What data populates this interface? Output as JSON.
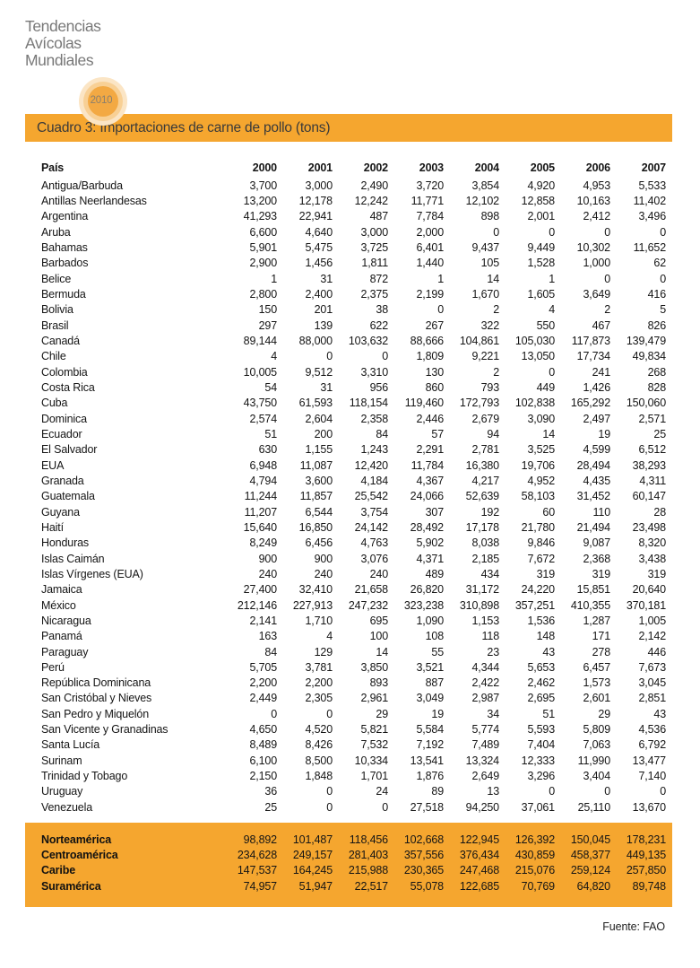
{
  "logo": {
    "lines": [
      "Tendencias",
      "Avícolas",
      "Mundiales"
    ],
    "year": "2010"
  },
  "banner": {
    "title": "Cuadro 3: Importaciones de carne de pollo (tons)"
  },
  "table": {
    "country_header": "País",
    "year_headers": [
      "2000",
      "2001",
      "2002",
      "2003",
      "2004",
      "2005",
      "2006",
      "2007"
    ],
    "rows": [
      {
        "country": "Antigua/Barbuda",
        "values": [
          "3,700",
          "3,000",
          "2,490",
          "3,720",
          "3,854",
          "4,920",
          "4,953",
          "5,533"
        ]
      },
      {
        "country": "Antillas Neerlandesas",
        "values": [
          "13,200",
          "12,178",
          "12,242",
          "11,771",
          "12,102",
          "12,858",
          "10,163",
          "11,402"
        ]
      },
      {
        "country": "Argentina",
        "values": [
          "41,293",
          "22,941",
          "487",
          "7,784",
          "898",
          "2,001",
          "2,412",
          "3,496"
        ]
      },
      {
        "country": "Aruba",
        "values": [
          "6,600",
          "4,640",
          "3,000",
          "2,000",
          "0",
          "0",
          "0",
          "0"
        ]
      },
      {
        "country": "Bahamas",
        "values": [
          "5,901",
          "5,475",
          "3,725",
          "6,401",
          "9,437",
          "9,449",
          "10,302",
          "11,652"
        ]
      },
      {
        "country": "Barbados",
        "values": [
          "2,900",
          "1,456",
          "1,811",
          "1,440",
          "105",
          "1,528",
          "1,000",
          "62"
        ]
      },
      {
        "country": "Belice",
        "values": [
          "1",
          "31",
          "872",
          "1",
          "14",
          "1",
          "0",
          "0"
        ]
      },
      {
        "country": "Bermuda",
        "values": [
          "2,800",
          "2,400",
          "2,375",
          "2,199",
          "1,670",
          "1,605",
          "3,649",
          "416"
        ]
      },
      {
        "country": "Bolivia",
        "values": [
          "150",
          "201",
          "38",
          "0",
          "2",
          "4",
          "2",
          "5"
        ]
      },
      {
        "country": "Brasil",
        "values": [
          "297",
          "139",
          "622",
          "267",
          "322",
          "550",
          "467",
          "826"
        ]
      },
      {
        "country": "Canadá",
        "values": [
          "89,144",
          "88,000",
          "103,632",
          "88,666",
          "104,861",
          "105,030",
          "117,873",
          "139,479"
        ]
      },
      {
        "country": "Chile",
        "values": [
          "4",
          "0",
          "0",
          "1,809",
          "9,221",
          "13,050",
          "17,734",
          "49,834"
        ]
      },
      {
        "country": "Colombia",
        "values": [
          "10,005",
          "9,512",
          "3,310",
          "130",
          "2",
          "0",
          "241",
          "268"
        ]
      },
      {
        "country": "Costa Rica",
        "values": [
          "54",
          "31",
          "956",
          "860",
          "793",
          "449",
          "1,426",
          "828"
        ]
      },
      {
        "country": "Cuba",
        "values": [
          "43,750",
          "61,593",
          "118,154",
          "119,460",
          "172,793",
          "102,838",
          "165,292",
          "150,060"
        ]
      },
      {
        "country": "Dominica",
        "values": [
          "2,574",
          "2,604",
          "2,358",
          "2,446",
          "2,679",
          "3,090",
          "2,497",
          "2,571"
        ]
      },
      {
        "country": "Ecuador",
        "values": [
          "51",
          "200",
          "84",
          "57",
          "94",
          "14",
          "19",
          "25"
        ]
      },
      {
        "country": "El Salvador",
        "values": [
          "630",
          "1,155",
          "1,243",
          "2,291",
          "2,781",
          "3,525",
          "4,599",
          "6,512"
        ]
      },
      {
        "country": "EUA",
        "values": [
          "6,948",
          "11,087",
          "12,420",
          "11,784",
          "16,380",
          "19,706",
          "28,494",
          "38,293"
        ]
      },
      {
        "country": "Granada",
        "values": [
          "4,794",
          "3,600",
          "4,184",
          "4,367",
          "4,217",
          "4,952",
          "4,435",
          "4,311"
        ]
      },
      {
        "country": "Guatemala",
        "values": [
          "11,244",
          "11,857",
          "25,542",
          "24,066",
          "52,639",
          "58,103",
          "31,452",
          "60,147"
        ]
      },
      {
        "country": "Guyana",
        "values": [
          "11,207",
          "6,544",
          "3,754",
          "307",
          "192",
          "60",
          "110",
          "28"
        ]
      },
      {
        "country": "Haití",
        "values": [
          "15,640",
          "16,850",
          "24,142",
          "28,492",
          "17,178",
          "21,780",
          "21,494",
          "23,498"
        ]
      },
      {
        "country": "Honduras",
        "values": [
          "8,249",
          "6,456",
          "4,763",
          "5,902",
          "8,038",
          "9,846",
          "9,087",
          "8,320"
        ]
      },
      {
        "country": "Islas Caimán",
        "values": [
          "900",
          "900",
          "3,076",
          "4,371",
          "2,185",
          "7,672",
          "2,368",
          "3,438"
        ]
      },
      {
        "country": "Islas Vírgenes (EUA)",
        "values": [
          "240",
          "240",
          "240",
          "489",
          "434",
          "319",
          "319",
          "319"
        ]
      },
      {
        "country": "Jamaica",
        "values": [
          "27,400",
          "32,410",
          "21,658",
          "26,820",
          "31,172",
          "24,220",
          "15,851",
          "20,640"
        ]
      },
      {
        "country": "México",
        "values": [
          "212,146",
          "227,913",
          "247,232",
          "323,238",
          "310,898",
          "357,251",
          "410,355",
          "370,181"
        ]
      },
      {
        "country": "Nicaragua",
        "values": [
          "2,141",
          "1,710",
          "695",
          "1,090",
          "1,153",
          "1,536",
          "1,287",
          "1,005"
        ]
      },
      {
        "country": "Panamá",
        "values": [
          "163",
          "4",
          "100",
          "108",
          "118",
          "148",
          "171",
          "2,142"
        ]
      },
      {
        "country": "Paraguay",
        "values": [
          "84",
          "129",
          "14",
          "55",
          "23",
          "43",
          "278",
          "446"
        ]
      },
      {
        "country": "Perú",
        "values": [
          "5,705",
          "3,781",
          "3,850",
          "3,521",
          "4,344",
          "5,653",
          "6,457",
          "7,673"
        ]
      },
      {
        "country": "República Dominicana",
        "values": [
          "2,200",
          "2,200",
          "893",
          "887",
          "2,422",
          "2,462",
          "1,573",
          "3,045"
        ]
      },
      {
        "country": "San Cristóbal y Nieves",
        "values": [
          "2,449",
          "2,305",
          "2,961",
          "3,049",
          "2,987",
          "2,695",
          "2,601",
          "2,851"
        ]
      },
      {
        "country": "San Pedro y Miquelón",
        "values": [
          "0",
          "0",
          "29",
          "19",
          "34",
          "51",
          "29",
          "43"
        ]
      },
      {
        "country": "San Vicente y Granadinas",
        "values": [
          "4,650",
          "4,520",
          "5,821",
          "5,584",
          "5,774",
          "5,593",
          "5,809",
          "4,536"
        ]
      },
      {
        "country": "Santa Lucía",
        "values": [
          "8,489",
          "8,426",
          "7,532",
          "7,192",
          "7,489",
          "7,404",
          "7,063",
          "6,792"
        ]
      },
      {
        "country": "Surinam",
        "values": [
          "6,100",
          "8,500",
          "10,334",
          "13,541",
          "13,324",
          "12,333",
          "11,990",
          "13,477"
        ]
      },
      {
        "country": "Trinidad y Tobago",
        "values": [
          "2,150",
          "1,848",
          "1,701",
          "1,876",
          "2,649",
          "3,296",
          "3,404",
          "7,140"
        ]
      },
      {
        "country": "Uruguay",
        "values": [
          "36",
          "0",
          "24",
          "89",
          "13",
          "0",
          "0",
          "0"
        ]
      },
      {
        "country": "Venezuela",
        "values": [
          "25",
          "0",
          "0",
          "27,518",
          "94,250",
          "37,061",
          "25,110",
          "13,670"
        ]
      }
    ],
    "region_rows": [
      {
        "country": "Norteamérica",
        "values": [
          "98,892",
          "101,487",
          "118,456",
          "102,668",
          "122,945",
          "126,392",
          "150,045",
          "178,231"
        ]
      },
      {
        "country": "Centroamérica",
        "values": [
          "234,628",
          "249,157",
          "281,403",
          "357,556",
          "376,434",
          "430,859",
          "458,377",
          "449,135"
        ]
      },
      {
        "country": "Caribe",
        "values": [
          "147,537",
          "164,245",
          "215,988",
          "230,365",
          "247,468",
          "215,076",
          "259,124",
          "257,850"
        ]
      },
      {
        "country": "Suramérica",
        "values": [
          "74,957",
          "51,947",
          "22,517",
          "55,078",
          "122,685",
          "70,769",
          "64,820",
          "89,748"
        ]
      }
    ]
  },
  "footer": {
    "source": "Fuente: FAO"
  },
  "colors": {
    "accent_orange": "#f5a62f",
    "logo_text_gray": "#787878"
  }
}
